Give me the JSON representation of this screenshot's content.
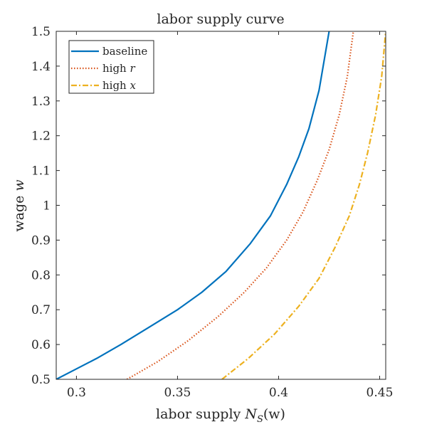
{
  "chart_data": {
    "type": "line",
    "title": "labor supply curve",
    "xlabel": "labor supply N_S(w)",
    "xlabel_parts": {
      "prefix": "labor supply ",
      "symbol": "N",
      "subscript": "S",
      "suffix": "(w)"
    },
    "ylabel": "wage w",
    "ylabel_parts": {
      "prefix": "wage ",
      "symbol": "w"
    },
    "xlim": [
      0.29,
      0.453
    ],
    "ylim": [
      0.5,
      1.5
    ],
    "xticks": [
      "0.3",
      "0.35",
      "0.4",
      "0.45"
    ],
    "yticks": [
      "0.5",
      "0.6",
      "0.7",
      "0.8",
      "0.9",
      "1",
      "1.1",
      "1.2",
      "1.3",
      "1.4",
      "1.5"
    ],
    "grid": false,
    "legend_position": "top-left",
    "series": [
      {
        "name": "baseline",
        "legend_text": "baseline",
        "legend_symbol": "",
        "color": "#0072BD",
        "style": "solid",
        "x": [
          0.29,
          0.3,
          0.31,
          0.322,
          0.336,
          0.35,
          0.362,
          0.374,
          0.386,
          0.396,
          0.404,
          0.41,
          0.415,
          0.42,
          0.425
        ],
        "y": [
          0.5,
          0.53,
          0.56,
          0.6,
          0.65,
          0.7,
          0.75,
          0.81,
          0.89,
          0.97,
          1.06,
          1.14,
          1.22,
          1.33,
          1.5
        ]
      },
      {
        "name": "high r",
        "legend_text": "high ",
        "legend_symbol": "r",
        "color": "#D95319",
        "style": "dotted",
        "x": [
          0.325,
          0.34,
          0.355,
          0.37,
          0.383,
          0.394,
          0.404,
          0.412,
          0.419,
          0.425,
          0.43,
          0.434,
          0.437
        ],
        "y": [
          0.5,
          0.55,
          0.61,
          0.68,
          0.75,
          0.82,
          0.9,
          0.98,
          1.07,
          1.16,
          1.26,
          1.37,
          1.5
        ]
      },
      {
        "name": "high x",
        "legend_text": "high ",
        "legend_symbol": "x",
        "color": "#EDB120",
        "style": "dashdot",
        "x": [
          0.372,
          0.385,
          0.398,
          0.41,
          0.42,
          0.428,
          0.435,
          0.44,
          0.444,
          0.448,
          0.451,
          0.453
        ],
        "y": [
          0.5,
          0.56,
          0.63,
          0.71,
          0.79,
          0.88,
          0.97,
          1.06,
          1.15,
          1.26,
          1.37,
          1.5
        ]
      }
    ]
  }
}
